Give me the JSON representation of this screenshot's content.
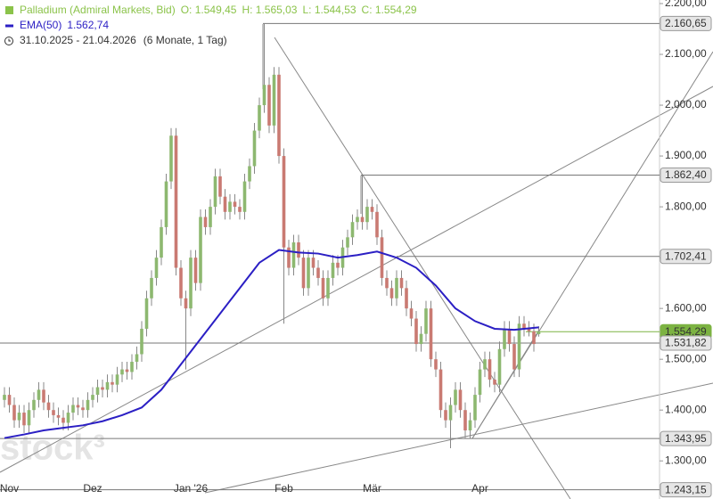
{
  "chart_data": {
    "type": "candlestick",
    "title": "Palladium (Admiral Markets, Bid)",
    "ohlc_labels": [
      "O: 1.549,45",
      "H: 1.565,03",
      "L: 1.544,53",
      "C: 1.554,29"
    ],
    "date_range": "31.10.2025 - 21.04.2026",
    "period": "(6 Monate, 1 Tag)",
    "watermark": "stock³",
    "categories": [
      null,
      "Nov",
      null,
      null,
      null,
      null,
      null,
      null,
      null,
      null,
      null,
      null,
      null,
      null,
      null,
      null,
      null,
      null,
      "Dez",
      null,
      null,
      null,
      null,
      null,
      null,
      null,
      null,
      null,
      null,
      null,
      null,
      null,
      null,
      null,
      null,
      null,
      null,
      null,
      "Jan '26",
      null,
      null,
      null,
      null,
      null,
      null,
      null,
      null,
      null,
      null,
      null,
      null,
      null,
      null,
      null,
      null,
      null,
      null,
      "Feb",
      null,
      null,
      null,
      null,
      null,
      null,
      null,
      null,
      null,
      null,
      null,
      null,
      null,
      null,
      null,
      null,
      null,
      "Mär",
      null,
      null,
      null,
      null,
      null,
      null,
      null,
      null,
      null,
      null,
      null,
      null,
      null,
      null,
      null,
      null,
      null,
      null,
      null,
      null,
      null,
      "Apr",
      null,
      null,
      null,
      null,
      null,
      null,
      null,
      null,
      null,
      null,
      null,
      null
    ],
    "open": [
      1420,
      1430,
      1410,
      1380,
      1395,
      1370,
      1400,
      1420,
      1440,
      1415,
      1400,
      1390,
      1385,
      1375,
      1395,
      1410,
      1405,
      1400,
      1420,
      1430,
      1445,
      1440,
      1455,
      1450,
      1470,
      1480,
      1475,
      1495,
      1510,
      1560,
      1620,
      1660,
      1700,
      1760,
      1850,
      1940,
      1680,
      1620,
      1600,
      1700,
      1650,
      1780,
      1760,
      1800,
      1860,
      1820,
      1790,
      1810,
      1800,
      1790,
      1850,
      1880,
      1950,
      2000,
      2040,
      1960,
      2060,
      1900,
      1720,
      1680,
      1730,
      1700,
      1640,
      1700,
      1680,
      1660,
      1620,
      1660,
      1690,
      1680,
      1720,
      1740,
      1770,
      1780,
      1770,
      1800,
      1790,
      1740,
      1660,
      1640,
      1620,
      1660,
      1640,
      1600,
      1580,
      1530,
      1550,
      1600,
      1500,
      1480,
      1400,
      1380,
      1410,
      1440,
      1400,
      1360,
      1380,
      1430,
      1480,
      1500,
      1460,
      1450,
      1520,
      1560,
      1530,
      1480,
      1570,
      1560,
      1555,
      1549.45
    ],
    "high": [
      1445,
      1445,
      1425,
      1410,
      1410,
      1415,
      1435,
      1455,
      1455,
      1430,
      1415,
      1405,
      1400,
      1410,
      1425,
      1425,
      1420,
      1435,
      1445,
      1460,
      1460,
      1470,
      1470,
      1485,
      1495,
      1495,
      1510,
      1525,
      1575,
      1635,
      1675,
      1715,
      1775,
      1865,
      1955,
      1955,
      1695,
      1635,
      1715,
      1715,
      1795,
      1795,
      1815,
      1875,
      1875,
      1835,
      1825,
      1825,
      1815,
      1865,
      1895,
      1965,
      2015,
      2160.65,
      2055,
      2075,
      2075,
      1915,
      1735,
      1745,
      1745,
      1715,
      1715,
      1715,
      1695,
      1675,
      1675,
      1705,
      1705,
      1735,
      1755,
      1785,
      1795,
      1862.4,
      1815,
      1815,
      1805,
      1755,
      1675,
      1655,
      1675,
      1675,
      1655,
      1615,
      1595,
      1565,
      1615,
      1615,
      1515,
      1495,
      1415,
      1425,
      1455,
      1455,
      1415,
      1395,
      1445,
      1495,
      1515,
      1515,
      1475,
      1535,
      1575,
      1575,
      1545,
      1585,
      1585,
      1575,
      1570,
      1565.03
    ],
    "low": [
      1405,
      1395,
      1365,
      1365,
      1355,
      1355,
      1385,
      1405,
      1400,
      1385,
      1375,
      1370,
      1360,
      1360,
      1380,
      1390,
      1385,
      1385,
      1405,
      1415,
      1425,
      1425,
      1435,
      1435,
      1455,
      1460,
      1460,
      1480,
      1495,
      1545,
      1605,
      1645,
      1685,
      1745,
      1835,
      1665,
      1605,
      1480,
      1585,
      1635,
      1635,
      1745,
      1745,
      1785,
      1805,
      1775,
      1775,
      1785,
      1775,
      1775,
      1835,
      1865,
      1935,
      1985,
      1945,
      1945,
      1885,
      1570,
      1665,
      1665,
      1685,
      1625,
      1625,
      1665,
      1645,
      1605,
      1605,
      1645,
      1665,
      1665,
      1705,
      1725,
      1755,
      1755,
      1755,
      1775,
      1725,
      1645,
      1625,
      1605,
      1605,
      1625,
      1585,
      1565,
      1515,
      1515,
      1535,
      1485,
      1465,
      1385,
      1365,
      1325,
      1395,
      1385,
      1345,
      1343.95,
      1365,
      1415,
      1465,
      1445,
      1435,
      1435,
      1505,
      1515,
      1465,
      1465,
      1545,
      1545,
      1515,
      1544.53
    ],
    "close": [
      1430,
      1410,
      1380,
      1395,
      1370,
      1400,
      1420,
      1440,
      1415,
      1400,
      1390,
      1385,
      1375,
      1395,
      1410,
      1405,
      1400,
      1420,
      1430,
      1445,
      1440,
      1455,
      1450,
      1470,
      1480,
      1475,
      1495,
      1510,
      1560,
      1620,
      1660,
      1700,
      1760,
      1850,
      1940,
      1680,
      1620,
      1600,
      1700,
      1650,
      1780,
      1760,
      1800,
      1860,
      1820,
      1790,
      1810,
      1800,
      1790,
      1850,
      1880,
      1950,
      2000,
      2040,
      1960,
      2060,
      1900,
      1720,
      1680,
      1730,
      1700,
      1640,
      1700,
      1680,
      1660,
      1620,
      1660,
      1690,
      1680,
      1720,
      1740,
      1770,
      1780,
      1770,
      1800,
      1790,
      1740,
      1660,
      1640,
      1620,
      1660,
      1640,
      1600,
      1580,
      1530,
      1550,
      1600,
      1500,
      1480,
      1400,
      1380,
      1410,
      1440,
      1400,
      1360,
      1380,
      1430,
      1480,
      1500,
      1460,
      1450,
      1520,
      1560,
      1530,
      1480,
      1570,
      1560,
      1555,
      1530,
      1554.29
    ],
    "up_color": "#8db870",
    "down_color": "#c97a72",
    "ema": {
      "name": "EMA(50)",
      "label": "1.562,74",
      "color": "#2b1fc4",
      "x": [
        0,
        4,
        8,
        12,
        16,
        20,
        24,
        28,
        32,
        36,
        40,
        44,
        48,
        52,
        56,
        60,
        64,
        68,
        72,
        76,
        80,
        84,
        88,
        92,
        96,
        100,
        104,
        109
      ],
      "values": [
        1345,
        1352,
        1360,
        1365,
        1370,
        1378,
        1390,
        1405,
        1440,
        1490,
        1540,
        1590,
        1640,
        1690,
        1715,
        1710,
        1708,
        1700,
        1705,
        1712,
        1700,
        1680,
        1645,
        1600,
        1575,
        1560,
        1558,
        1562.74
      ]
    },
    "levels": [
      {
        "value": 2160.65,
        "label": "2.160,65"
      },
      {
        "value": 1862.4,
        "label": "1.862,40"
      },
      {
        "value": 1702.41,
        "label": "1.702,41"
      },
      {
        "value": 1554.29,
        "label": "1.554,29",
        "color": "#7cb342"
      },
      {
        "value": 1531.82,
        "label": "1.531,82"
      },
      {
        "value": 1343.95,
        "label": "1.343,95"
      },
      {
        "value": 1243.15,
        "label": "1.243,15"
      }
    ],
    "ylim": [
      1225,
      2207
    ],
    "yticks": [
      {
        "value": 1300,
        "label": "1.300,00"
      },
      {
        "value": 1400,
        "label": "1.400,00"
      },
      {
        "value": 1500,
        "label": "1.500,00"
      },
      {
        "value": 1600,
        "label": "1.600,00"
      },
      {
        "value": 1700,
        "label": "1.700,00"
      },
      {
        "value": 1800,
        "label": "1.800,00"
      },
      {
        "value": 1900,
        "label": "1.900,00"
      },
      {
        "value": 2000,
        "label": "2.000,00"
      },
      {
        "value": 2100,
        "label": "2.100,00"
      },
      {
        "value": 2200,
        "label": "2.200,00"
      }
    ]
  }
}
